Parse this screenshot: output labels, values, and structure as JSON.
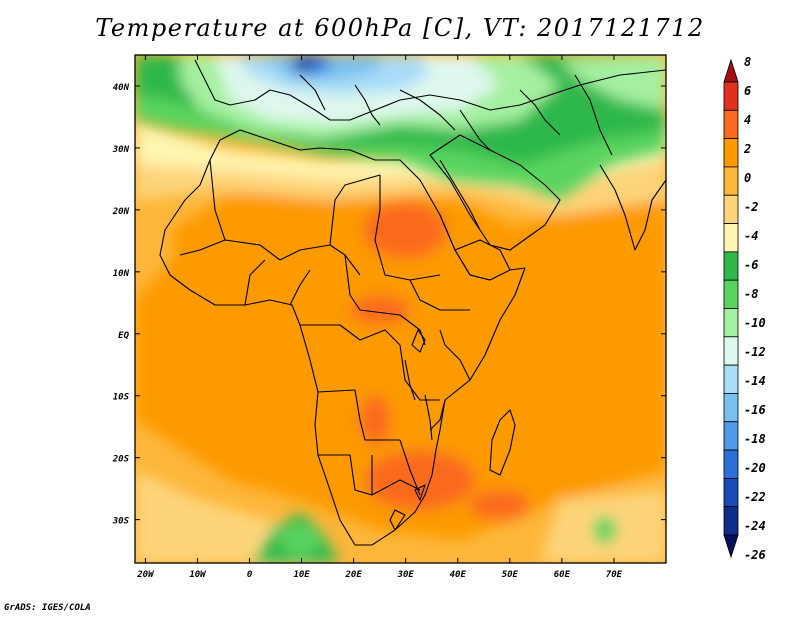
{
  "title": "Temperature at 600hPa [C], VT: 2017121712",
  "credit": "GrADS: IGES/COLA",
  "map": {
    "lat_labels": [
      "40N",
      "30N",
      "20N",
      "10N",
      "EQ",
      "10S",
      "20S",
      "30S"
    ],
    "lat_values": [
      40,
      30,
      20,
      10,
      0,
      -10,
      -20,
      -30
    ],
    "lon_labels": [
      "20W",
      "10W",
      "0",
      "10E",
      "20E",
      "30E",
      "40E",
      "50E",
      "60E",
      "70E"
    ],
    "lon_values": [
      -20,
      -10,
      0,
      10,
      20,
      30,
      40,
      50,
      60,
      70
    ],
    "lon_range": [
      -22,
      80
    ],
    "lat_range": [
      -37,
      45
    ]
  },
  "legend": {
    "labels": [
      "8",
      "6",
      "4",
      "2",
      "0",
      "-2",
      "-4",
      "-6",
      "-8",
      "-10",
      "-12",
      "-14",
      "-16",
      "-18",
      "-20",
      "-22",
      "-24",
      "-26"
    ],
    "colors": [
      "#a50f15",
      "#e0301e",
      "#fa6a1e",
      "#fd9a00",
      "#fdb63a",
      "#fdd47a",
      "#fff4b0",
      "#2fb84b",
      "#5ad45e",
      "#a5f0a0",
      "#dff8ee",
      "#a8dcf7",
      "#78c0ee",
      "#5098e8",
      "#2a6fd6",
      "#1a4ab8",
      "#0f2d8a",
      "#08105a"
    ]
  }
}
